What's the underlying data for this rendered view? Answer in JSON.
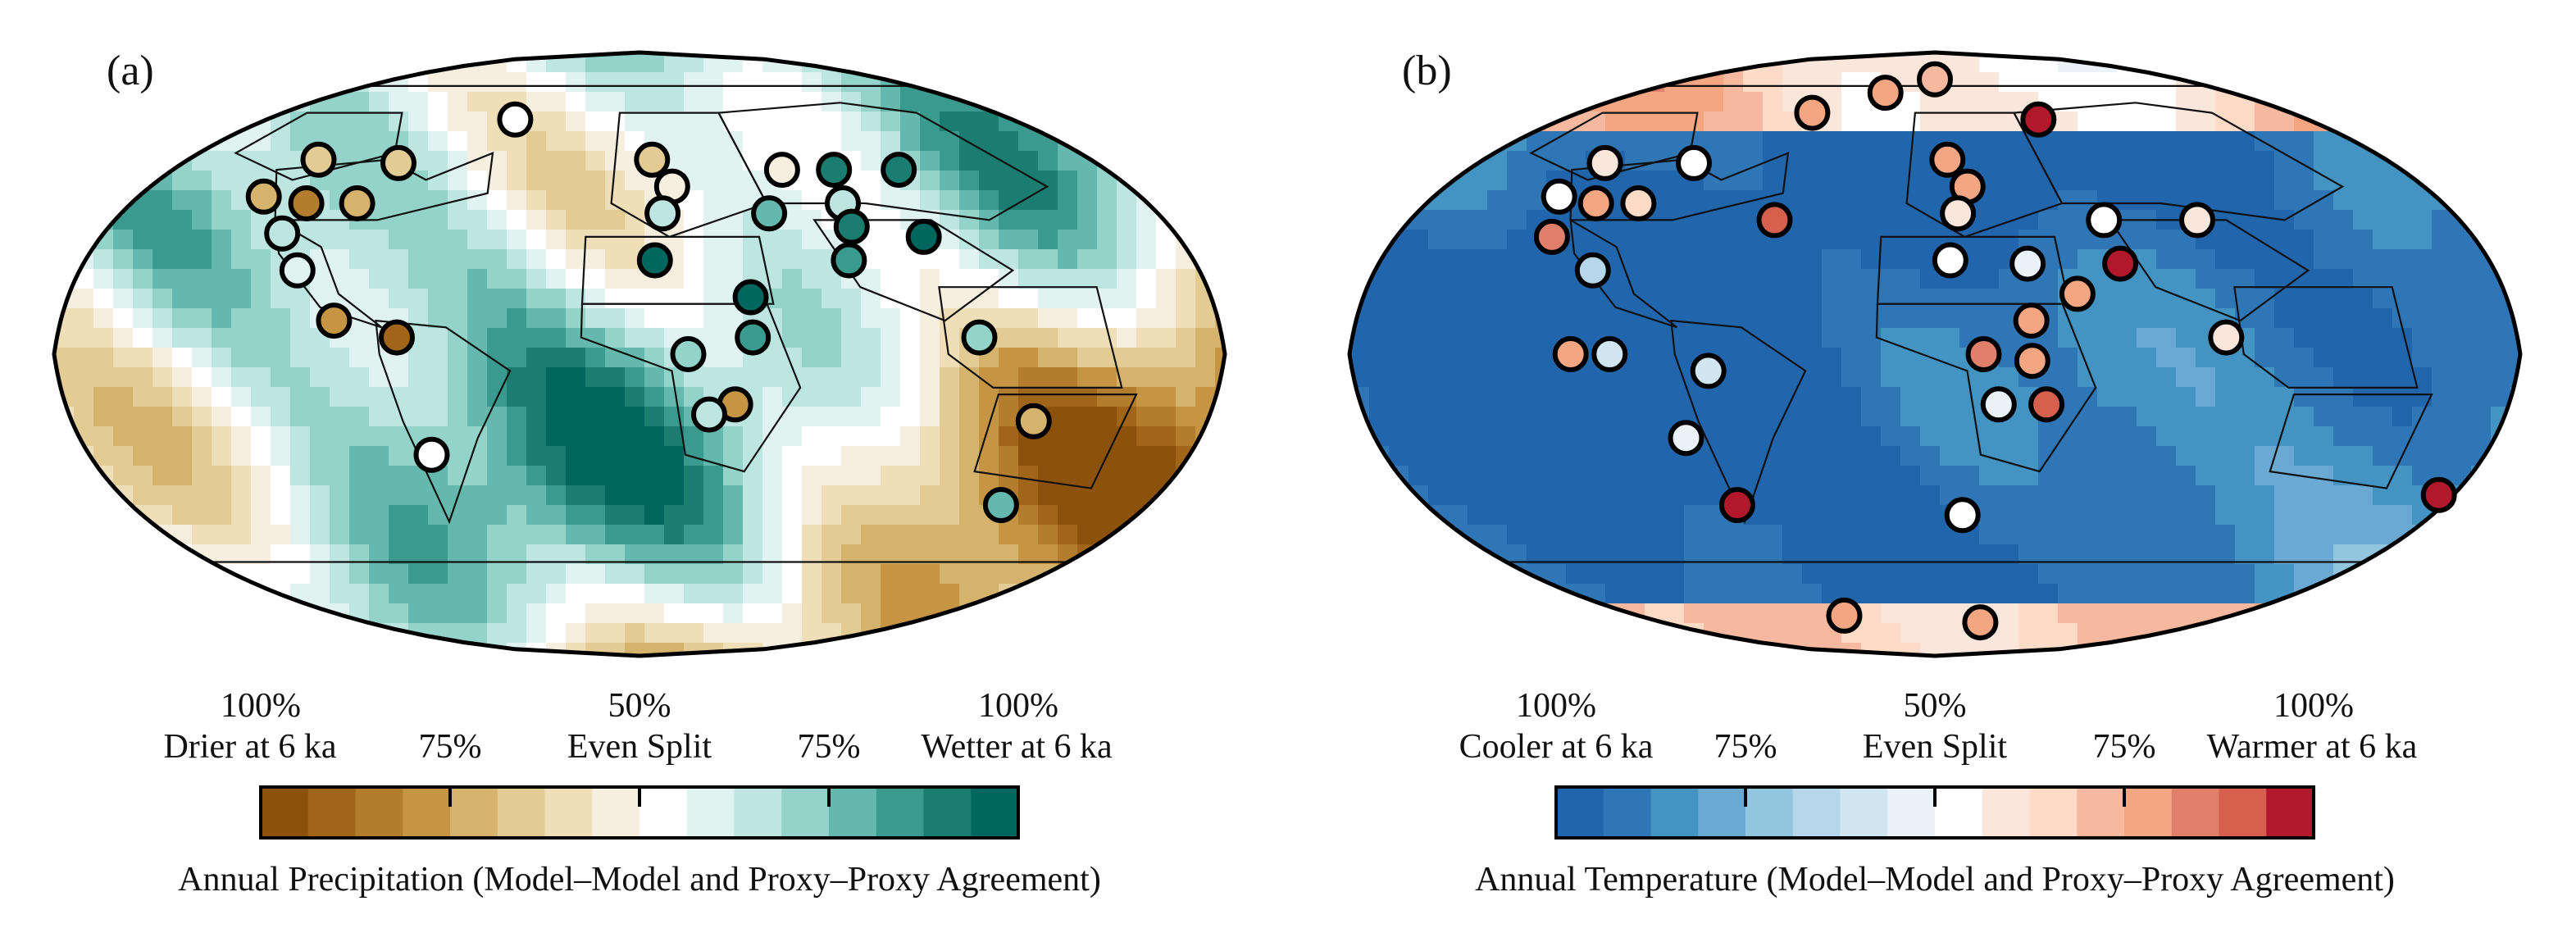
{
  "panels": [
    {
      "label": "(a)",
      "palette": [
        "#8c510a",
        "#a16519",
        "#b47c2d",
        "#c69544",
        "#d6b36d",
        "#e3cb94",
        "#efdfb8",
        "#f6efe0",
        "#ffffff",
        "#e0f3f0",
        "#bde6e0",
        "#93d3ca",
        "#65b8ad",
        "#3a9a8e",
        "#1b7c70",
        "#01665e"
      ],
      "colorbar": {
        "tick_top": [
          "100%",
          "50%",
          "100%"
        ],
        "tick_bottom": [
          "Drier at 6 ka",
          "75%",
          "Even Split",
          "75%",
          "Wetter at 6 ka"
        ],
        "title": "Annual Precipitation (Model–Model and Proxy–Proxy Agreement)"
      },
      "sites": [
        {
          "lon": -128,
          "lat": 58,
          "level": 5
        },
        {
          "lon": -95,
          "lat": 57,
          "level": 5
        },
        {
          "lon": -60,
          "lat": 70,
          "level": 8
        },
        {
          "lon": -135,
          "lat": 47,
          "level": 4
        },
        {
          "lon": -118,
          "lat": 45,
          "level": 2
        },
        {
          "lon": -100,
          "lat": 45,
          "level": 4
        },
        {
          "lon": -120,
          "lat": 36,
          "level": 10
        },
        {
          "lon": -110,
          "lat": 25,
          "level": 9
        },
        {
          "lon": -95,
          "lat": 10,
          "level": 3
        },
        {
          "lon": -75,
          "lat": 5,
          "level": 1
        },
        {
          "lon": -68,
          "lat": -30,
          "level": 8
        },
        {
          "lon": 5,
          "lat": 58,
          "level": 5
        },
        {
          "lon": 12,
          "lat": 50,
          "level": 7
        },
        {
          "lon": 8,
          "lat": 42,
          "level": 10
        },
        {
          "lon": 5,
          "lat": 28,
          "level": 15
        },
        {
          "lon": 15,
          "lat": 0,
          "level": 11
        },
        {
          "lon": 30,
          "lat": -15,
          "level": 3
        },
        {
          "lon": 35,
          "lat": 5,
          "level": 13
        },
        {
          "lon": 35,
          "lat": 17,
          "level": 15
        },
        {
          "lon": 45,
          "lat": 42,
          "level": 12
        },
        {
          "lon": 55,
          "lat": 55,
          "level": 7
        },
        {
          "lon": 75,
          "lat": 55,
          "level": 14
        },
        {
          "lon": 72,
          "lat": 45,
          "level": 10
        },
        {
          "lon": 72,
          "lat": 38,
          "level": 14
        },
        {
          "lon": 68,
          "lat": 28,
          "level": 13
        },
        {
          "lon": 100,
          "lat": 55,
          "level": 14
        },
        {
          "lon": 95,
          "lat": 35,
          "level": 15
        },
        {
          "lon": 105,
          "lat": 5,
          "level": 11
        },
        {
          "lon": 22,
          "lat": -18,
          "level": 10
        },
        {
          "lon": 125,
          "lat": -20,
          "level": 4
        },
        {
          "lon": 128,
          "lat": -45,
          "level": 12
        }
      ]
    },
    {
      "label": "(b)",
      "palette": [
        "#2166ac",
        "#2f76b6",
        "#4393c3",
        "#6aaad2",
        "#92c5de",
        "#b5d7e9",
        "#d1e5f0",
        "#ebf2f7",
        "#ffffff",
        "#fbe6dc",
        "#fddbc7",
        "#f6b9a0",
        "#f4a582",
        "#e0806a",
        "#d6604d",
        "#b2182b"
      ],
      "colorbar": {
        "tick_top": [
          "100%",
          "50%",
          "100%"
        ],
        "tick_bottom": [
          "Cooler at 6 ka",
          "75%",
          "Even Split",
          "75%",
          "Warmer at 6 ka"
        ],
        "title": "Annual Temperature (Model–Model and Proxy–Proxy Agreement)"
      },
      "sites": [
        {
          "lon": -130,
          "lat": 57,
          "level": 9
        },
        {
          "lon": -95,
          "lat": 57,
          "level": 8
        },
        {
          "lon": -62,
          "lat": 72,
          "level": 12
        },
        {
          "lon": -30,
          "lat": 78,
          "level": 12
        },
        {
          "lon": 0,
          "lat": 82,
          "level": 11
        },
        {
          "lon": 5,
          "lat": 58,
          "level": 12
        },
        {
          "lon": 12,
          "lat": 50,
          "level": 12
        },
        {
          "lon": 8,
          "lat": 42,
          "level": 9
        },
        {
          "lon": 50,
          "lat": 70,
          "level": 15
        },
        {
          "lon": -135,
          "lat": 47,
          "level": 8
        },
        {
          "lon": -120,
          "lat": 45,
          "level": 12
        },
        {
          "lon": -105,
          "lat": 45,
          "level": 10
        },
        {
          "lon": -55,
          "lat": 40,
          "level": 14
        },
        {
          "lon": -128,
          "lat": 35,
          "level": 13
        },
        {
          "lon": -110,
          "lat": 25,
          "level": 5
        },
        {
          "lon": 5,
          "lat": 28,
          "level": 8
        },
        {
          "lon": 30,
          "lat": 27,
          "level": 7
        },
        {
          "lon": 45,
          "lat": 18,
          "level": 12
        },
        {
          "lon": 58,
          "lat": 40,
          "level": 8
        },
        {
          "lon": 60,
          "lat": 27,
          "level": 15
        },
        {
          "lon": 90,
          "lat": 40,
          "level": 9
        },
        {
          "lon": 90,
          "lat": 5,
          "level": 9
        },
        {
          "lon": -112,
          "lat": 0,
          "level": 12
        },
        {
          "lon": -100,
          "lat": 0,
          "level": 6
        },
        {
          "lon": -70,
          "lat": -5,
          "level": 6
        },
        {
          "lon": 15,
          "lat": 0,
          "level": 13
        },
        {
          "lon": 30,
          "lat": 10,
          "level": 12
        },
        {
          "lon": 30,
          "lat": -2,
          "level": 12
        },
        {
          "lon": 20,
          "lat": -15,
          "level": 7
        },
        {
          "lon": 35,
          "lat": -15,
          "level": 14
        },
        {
          "lon": -80,
          "lat": -25,
          "level": 7
        },
        {
          "lon": -70,
          "lat": -45,
          "level": 15
        },
        {
          "lon": 10,
          "lat": -48,
          "level": 8
        },
        {
          "lon": 175,
          "lat": -42,
          "level": 15
        },
        {
          "lon": -55,
          "lat": -78,
          "level": 12
        },
        {
          "lon": 30,
          "lat": -80,
          "level": 12
        }
      ]
    }
  ]
}
